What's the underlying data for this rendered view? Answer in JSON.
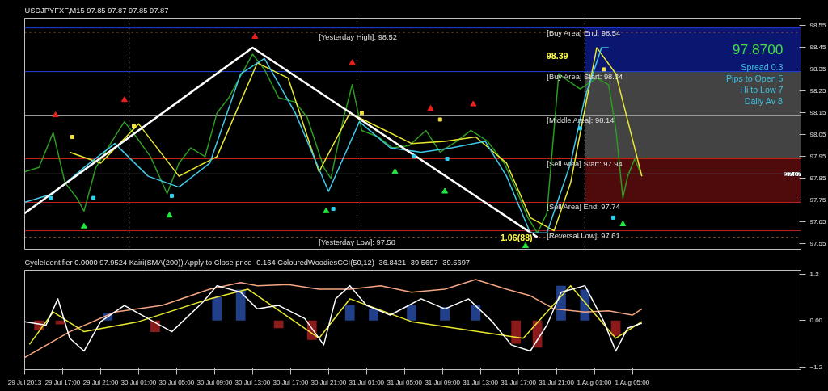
{
  "chart_data": [
    {
      "type": "line",
      "title": "USDJPYFXF,M15  97.85 97.87 97.85 97.87",
      "xlim": [
        "2013-07-29T13:00",
        "2013-08-01T22:45"
      ],
      "ylim": [
        97.525,
        98.585
      ],
      "yticks": [
        98.55,
        98.45,
        98.35,
        98.25,
        98.15,
        98.05,
        97.95,
        97.85,
        97.75,
        97.65,
        97.55
      ],
      "tick_labels": "y",
      "grid": false,
      "series": [
        {
          "color": "#2e9b22",
          "x": [
            "2013-07-29T13:00",
            "2013-07-29T14:30",
            "2013-07-29T16:00",
            "2013-07-29T17:15",
            "2013-07-29T18:30",
            "2013-07-29T19:15",
            "2013-07-29T20:30",
            "2013-07-29T21:45",
            "2013-07-29T23:30",
            "2013-07-30T00:45",
            "2013-07-30T02:15",
            "2013-07-30T04:00",
            "2013-07-30T05:15",
            "2013-07-30T06:30",
            "2013-07-30T08:00",
            "2013-07-30T09:15",
            "2013-07-30T10:30",
            "2013-07-30T12:15",
            "2013-07-30T13:00",
            "2013-07-30T14:15",
            "2013-07-30T15:45",
            "2013-07-30T17:30",
            "2013-07-30T18:45",
            "2013-07-30T20:30",
            "2013-07-30T21:15",
            "2013-07-30T22:30",
            "2013-07-30T23:30",
            "2013-07-31T00:30",
            "2013-07-31T02:15",
            "2013-07-31T03:45",
            "2013-07-31T05:30",
            "2013-07-31T07:15",
            "2013-07-31T08:45",
            "2013-07-31T10:30",
            "2013-07-31T12:00",
            "2013-07-31T13:45",
            "2013-07-31T15:30",
            "2013-07-31T16:45",
            "2013-07-31T18:00",
            "2013-07-31T19:00",
            "2013-07-31T20:00",
            "2013-07-31T21:15",
            "2013-07-31T22:30",
            "2013-07-31T23:30",
            "2013-08-01T01:15",
            "2013-08-01T02:30",
            "2013-08-01T03:15",
            "2013-08-01T04:00",
            "2013-08-01T04:30",
            "2013-08-01T05:15",
            "2013-08-01T06:00"
          ],
          "values": [
            97.88,
            97.9,
            98.06,
            97.83,
            97.76,
            97.7,
            97.9,
            97.99,
            98.11,
            98.04,
            97.95,
            97.78,
            97.92,
            97.99,
            97.95,
            98.15,
            98.22,
            98.36,
            98.42,
            98.35,
            98.22,
            98.2,
            98.13,
            97.9,
            97.85,
            98.11,
            98.28,
            98.07,
            98.04,
            97.99,
            98.0,
            98.07,
            97.97,
            98.02,
            98.07,
            98.02,
            97.92,
            97.8,
            97.67,
            97.6,
            97.69,
            98.33,
            98.29,
            98.26,
            98.31,
            98.28,
            98.08,
            97.76,
            97.86,
            97.94,
            97.86
          ]
        },
        {
          "color": "#e8e830",
          "x": [
            "2013-07-29T17:45",
            "2013-07-29T21:00",
            "2013-07-30T01:00",
            "2013-07-30T05:15",
            "2013-07-30T09:15",
            "2013-07-30T13:30",
            "2013-07-30T16:45",
            "2013-07-30T20:00",
            "2013-07-30T23:15",
            "2013-07-31T02:30",
            "2013-07-31T05:45",
            "2013-07-31T09:15",
            "2013-07-31T12:30",
            "2013-07-31T15:45",
            "2013-07-31T18:15",
            "2013-07-31T20:45",
            "2013-07-31T22:30",
            "2013-08-01T01:15",
            "2013-08-01T03:15",
            "2013-08-01T06:00"
          ],
          "values": [
            97.97,
            97.92,
            98.1,
            97.86,
            97.95,
            98.38,
            98.31,
            97.88,
            98.15,
            98.08,
            98.01,
            98.02,
            98.04,
            97.92,
            97.67,
            97.61,
            97.83,
            98.45,
            98.33,
            97.86
          ]
        },
        {
          "color": "#40c8e8",
          "x": [
            "2013-07-29T13:00",
            "2013-07-29T16:00",
            "2013-07-29T19:15",
            "2013-07-29T22:30",
            "2013-07-30T02:00",
            "2013-07-30T05:15",
            "2013-07-30T08:30",
            "2013-07-30T11:45",
            "2013-07-30T14:15",
            "2013-07-30T17:30",
            "2013-07-30T21:00",
            "2013-07-31T00:15",
            "2013-07-31T03:30",
            "2013-07-31T06:45",
            "2013-07-31T10:00",
            "2013-07-31T13:30",
            "2013-07-31T15:45",
            "2013-07-31T18:15",
            "2013-07-31T20:00",
            "2013-07-31T22:30",
            "2013-08-01T00:00",
            "2013-08-01T01:45",
            "2013-08-01T02:30"
          ],
          "values": [
            97.74,
            97.78,
            97.9,
            98.01,
            97.86,
            97.81,
            97.92,
            98.33,
            98.4,
            98.15,
            97.79,
            98.11,
            97.99,
            97.97,
            97.99,
            98.02,
            97.86,
            97.6,
            97.6,
            97.92,
            98.22,
            98.45,
            98.45
          ]
        },
        {
          "color": "#ffffff",
          "x": [
            "2013-07-29T13:00",
            "2013-07-30T13:00",
            "2013-07-31T19:00"
          ],
          "values": [
            97.69,
            98.45,
            97.58
          ]
        },
        {
          "type": "scatter",
          "marker": "triangle",
          "color": "#e82020",
          "x": [
            "2013-07-29T16:15",
            "2013-07-29T23:30",
            "2013-07-30T13:15",
            "2013-07-30T23:30",
            "2013-07-31T07:45",
            "2013-07-31T12:15"
          ],
          "values": [
            98.14,
            98.21,
            98.5,
            98.38,
            98.17,
            98.19
          ]
        },
        {
          "type": "scatter",
          "marker": "triangle",
          "color": "#20e840",
          "x": [
            "2013-07-29T19:15",
            "2013-07-30T04:15",
            "2013-07-30T20:45",
            "2013-07-31T04:00",
            "2013-07-31T09:15",
            "2013-07-31T17:45",
            "2013-08-01T04:00"
          ],
          "values": [
            97.63,
            97.68,
            97.7,
            97.88,
            97.79,
            97.54,
            97.64
          ]
        },
        {
          "type": "scatter",
          "marker": "square",
          "color": "#f0e040",
          "x": [
            "2013-07-29T18:00",
            "2013-07-30T00:30",
            "2013-07-31T00:30",
            "2013-07-31T08:45",
            "2013-08-01T02:00"
          ],
          "values": [
            98.04,
            98.09,
            98.15,
            98.12,
            98.35
          ]
        },
        {
          "type": "scatter",
          "marker": "square",
          "color": "#30d0f0",
          "x": [
            "2013-07-29T15:45",
            "2013-07-29T20:15",
            "2013-07-30T04:30",
            "2013-07-30T21:30",
            "2013-07-31T06:00",
            "2013-07-31T09:30",
            "2013-07-31T23:30",
            "2013-08-01T03:00"
          ],
          "values": [
            97.76,
            97.76,
            97.77,
            97.71,
            97.95,
            97.94,
            98.08,
            97.67
          ]
        }
      ],
      "ref_lines": [
        {
          "axis": "x",
          "value": "2013-07-30T00:00",
          "color": "#ffffff",
          "line_style": "dotted"
        },
        {
          "axis": "x",
          "value": "2013-07-31T00:00",
          "color": "#ffffff",
          "line_style": "dotted"
        },
        {
          "axis": "x",
          "value": "2013-08-01T00:00",
          "color": "#ffffff",
          "line_style": "dotted"
        },
        {
          "axis": "y",
          "value": 97.87,
          "label": "97.87",
          "color": "#c0c0c0",
          "line_style": "solid"
        },
        {
          "axis": "y",
          "value": 98.52,
          "label": "[Yesterday High]: 98.52",
          "color": "#c07030",
          "line_style": "dotted"
        },
        {
          "axis": "y",
          "value": 97.58,
          "label": "[Yesterday Low]: 97.58",
          "color": "#c07030",
          "line_style": "dotted"
        },
        {
          "axis": "y",
          "value": 98.54,
          "label": "[Buy Area] End: 98.54",
          "color": "#2040e0",
          "line_style": "solid"
        },
        {
          "axis": "y",
          "value": 98.34,
          "label": "[Buy Area] Start: 98.34",
          "color": "#2040e0",
          "line_style": "solid"
        },
        {
          "axis": "y",
          "value": 98.14,
          "label": "[Middle Area]: 98.14",
          "color": "#a0a0a0",
          "line_style": "solid"
        },
        {
          "axis": "y",
          "value": 97.94,
          "label": "[Sell Area] Start: 97.94",
          "color": "#c02020",
          "line_style": "solid"
        },
        {
          "axis": "y",
          "value": 97.74,
          "label": "[Sell Area] End: 97.74",
          "color": "#c02020",
          "line_style": "solid"
        },
        {
          "axis": "y",
          "value": 97.61,
          "label": "[Reversal Low]: 97.61",
          "color": "#c02020",
          "line_style": "solid"
        }
      ],
      "bands": [
        {
          "axis": "y",
          "from": 98.34,
          "to": 98.54,
          "color": "#1020a0"
        },
        {
          "axis": "y",
          "from": 97.94,
          "to": 98.34,
          "color": "#606060"
        },
        {
          "axis": "y",
          "from": 97.74,
          "to": 97.94,
          "color": "#701010"
        }
      ],
      "annotations": [
        {
          "text": "1.06(88)",
          "x": "2013-07-31T19:00",
          "y": 97.58
        },
        "98.39",
        "97.8700",
        "Spread 0.3",
        "Pips to Open 5",
        "Hi to Low 7",
        "Daily Av 8"
      ]
    },
    {
      "type": "line",
      "title": "CycleIdentifier 0.0000 97.9524 Kairi(SMA(200)) Apply to Close price -0.164 ColouredWoodiesCCI(50,12) -36.8421 -39.5697 -39.5697",
      "xlim": [
        "2013-07-29T13:00",
        "2013-08-01T22:45"
      ],
      "ylim": [
        -1.27,
        1.3
      ],
      "xticks": [
        {
          "value": "2013-07-29T13:00",
          "label": "29 Jul 2013"
        },
        {
          "value": "2013-07-29T17:00",
          "label": "29 Jul 17:00"
        },
        {
          "value": "2013-07-29T21:00",
          "label": "29 Jul 21:00"
        },
        {
          "value": "2013-07-30T01:00",
          "label": "30 Jul 01:00"
        },
        {
          "value": "2013-07-30T05:00",
          "label": "30 Jul 05:00"
        },
        {
          "value": "2013-07-30T09:00",
          "label": "30 Jul 09:00"
        },
        {
          "value": "2013-07-30T13:00",
          "label": "30 Jul 13:00"
        },
        {
          "value": "2013-07-30T17:00",
          "label": "30 Jul 17:00"
        },
        {
          "value": "2013-07-30T21:00",
          "label": "30 Jul 21:00"
        },
        {
          "value": "2013-07-31T01:00",
          "label": "31 Jul 01:00"
        },
        {
          "value": "2013-07-31T05:00",
          "label": "31 Jul 05:00"
        },
        {
          "value": "2013-07-31T09:00",
          "label": "31 Jul 09:00"
        },
        {
          "value": "2013-07-31T13:00",
          "label": "31 Jul 13:00"
        },
        {
          "value": "2013-07-31T17:00",
          "label": "31 Jul 17:00"
        },
        {
          "value": "2013-07-31T21:00",
          "label": "31 Jul 21:00"
        },
        {
          "value": "2013-08-01T01:00",
          "label": "1 Aug 01:00"
        },
        {
          "value": "2013-08-01T05:00",
          "label": "1 Aug 05:00"
        }
      ],
      "yticks": [
        1.2,
        {
          "value": 0,
          "label": "0.00"
        },
        -1.2
      ],
      "grid": false,
      "series": [
        {
          "type": "bar",
          "x": [
            "2013-07-29T14:30",
            "2013-07-29T16:45",
            "2013-07-29T21:45",
            "2013-07-30T02:45",
            "2013-07-30T09:15",
            "2013-07-30T11:45",
            "2013-07-30T15:45",
            "2013-07-30T19:15",
            "2013-07-30T23:15",
            "2013-07-31T01:45",
            "2013-07-31T05:45",
            "2013-07-31T09:15",
            "2013-07-31T12:30",
            "2013-07-31T16:45",
            "2013-07-31T19:00",
            "2013-07-31T21:30",
            "2013-08-01T00:00",
            "2013-08-01T03:15"
          ],
          "values": [
            -0.25,
            -0.1,
            0.2,
            -0.3,
            0.6,
            0.8,
            -0.2,
            -0.5,
            0.4,
            0.3,
            0.4,
            0.35,
            0.4,
            -0.6,
            -0.7,
            0.9,
            0.8,
            -0.4
          ],
          "colors": [
            "#8b1a1a",
            "#8b1a1a",
            "#22408a",
            "#8b1a1a",
            "#22408a",
            "#22408a",
            "#8b1a1a",
            "#8b1a1a",
            "#22408a",
            "#22408a",
            "#22408a",
            "#22408a",
            "#22408a",
            "#8b1a1a",
            "#8b1a1a",
            "#22408a",
            "#22408a",
            "#8b1a1a"
          ]
        },
        {
          "color": "#f4a582",
          "x": [
            "2013-07-29T13:00",
            "2013-07-29T17:45",
            "2013-07-29T22:30",
            "2013-07-30T03:30",
            "2013-07-30T08:30",
            "2013-07-30T11:45",
            "2013-07-30T13:30",
            "2013-07-30T16:45",
            "2013-07-30T20:00",
            "2013-07-30T23:15",
            "2013-07-31T02:30",
            "2013-07-31T05:45",
            "2013-07-31T09:15",
            "2013-07-31T12:30",
            "2013-07-31T15:45",
            "2013-07-31T18:15",
            "2013-07-31T20:45",
            "2013-08-01T00:00",
            "2013-08-01T02:30",
            "2013-08-01T05:00",
            "2013-08-01T06:00"
          ],
          "values": [
            -0.96,
            -0.29,
            0.22,
            0.39,
            0.81,
            0.98,
            0.9,
            0.93,
            0.81,
            0.81,
            0.9,
            0.73,
            0.81,
            1.06,
            0.81,
            0.64,
            0.3,
            0.22,
            0.25,
            0.14,
            0.3
          ]
        },
        {
          "color": "#e8e830",
          "x": [
            "2013-07-29T13:30",
            "2013-07-29T16:00",
            "2013-07-29T19:15",
            "2013-07-30T01:00",
            "2013-07-30T08:30",
            "2013-07-30T12:30",
            "2013-07-30T20:00",
            "2013-07-30T23:15",
            "2013-07-31T05:45",
            "2013-07-31T17:30",
            "2013-07-31T22:30",
            "2013-08-01T03:15",
            "2013-08-01T06:00"
          ],
          "values": [
            -0.62,
            0.22,
            -0.29,
            -0.03,
            0.56,
            0.81,
            -0.46,
            0.56,
            -0.03,
            -0.46,
            0.9,
            -0.46,
            -0.03
          ]
        },
        {
          "color": "#ffffff",
          "x": [
            "2013-07-29T13:00",
            "2013-07-29T15:15",
            "2013-07-29T16:30",
            "2013-07-29T17:45",
            "2013-07-29T19:15",
            "2013-07-29T21:00",
            "2013-07-29T23:30",
            "2013-07-30T02:00",
            "2013-07-30T04:30",
            "2013-07-30T07:45",
            "2013-07-30T09:15",
            "2013-07-30T11:45",
            "2013-07-30T13:30",
            "2013-07-30T15:45",
            "2013-07-30T18:30",
            "2013-07-30T20:30",
            "2013-07-30T21:45",
            "2013-07-30T23:15",
            "2013-07-31T01:00",
            "2013-07-31T03:30",
            "2013-07-31T06:45",
            "2013-07-31T09:15",
            "2013-07-31T11:45",
            "2013-07-31T14:15",
            "2013-07-31T16:15",
            "2013-07-31T18:15",
            "2013-07-31T20:00",
            "2013-07-31T21:30",
            "2013-08-01T00:00",
            "2013-08-01T02:00",
            "2013-08-01T03:15",
            "2013-08-01T04:30",
            "2013-08-01T06:00"
          ],
          "values": [
            -0.03,
            -0.12,
            0.56,
            -0.46,
            -0.79,
            -0.03,
            0.39,
            0.05,
            -0.29,
            0.47,
            0.9,
            0.73,
            0.3,
            0.39,
            0.05,
            -0.63,
            0.56,
            0.9,
            0.39,
            0.14,
            0.56,
            0.3,
            0.56,
            -0.03,
            -0.63,
            -0.79,
            -0.12,
            0.73,
            0.9,
            -0.03,
            -0.79,
            -0.2,
            -0.07
          ]
        }
      ]
    }
  ]
}
